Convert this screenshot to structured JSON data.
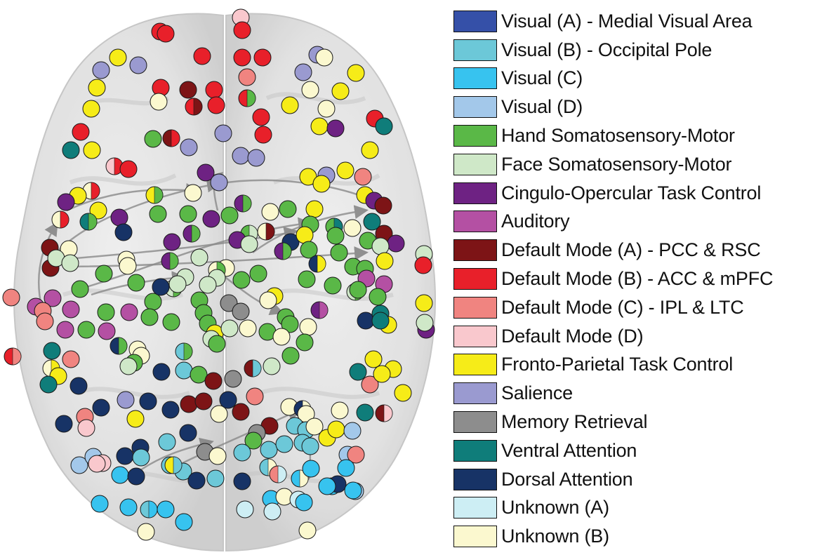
{
  "legend": [
    {
      "label": "Visual (A) - Medial Visual Area",
      "color": "#3550a8"
    },
    {
      "label": "Visual (B) - Occipital Pole",
      "color": "#6cc8d8"
    },
    {
      "label": "Visual (C)",
      "color": "#37c3ef"
    },
    {
      "label": "Visual (D)",
      "color": "#a3c8ea"
    },
    {
      "label": "Hand Somatosensory-Motor",
      "color": "#5ab847"
    },
    {
      "label": "Face Somatosensory-Motor",
      "color": "#cfe8c8"
    },
    {
      "label": "Cingulo-Opercular Task Control",
      "color": "#6e2283"
    },
    {
      "label": "Auditory",
      "color": "#b450a3"
    },
    {
      "label": "Default Mode (A) - PCC & RSC",
      "color": "#7d1416"
    },
    {
      "label": "Default Mode (B) - ACC & mPFC",
      "color": "#e8202a"
    },
    {
      "label": "Default Mode (C) - IPL & LTC",
      "color": "#f08480"
    },
    {
      "label": "Default Mode (D)",
      "color": "#f9c8cd"
    },
    {
      "label": "Fronto-Parietal Task Control",
      "color": "#f6ec18"
    },
    {
      "label": "Salience",
      "color": "#9a9ad0"
    },
    {
      "label": "Memory Retrieval",
      "color": "#8d8d8d"
    },
    {
      "label": "Ventral Attention",
      "color": "#0f7d7a"
    },
    {
      "label": "Dorsal Attention",
      "color": "#173366"
    },
    {
      "label": "Unknown (A)",
      "color": "#cdeef4"
    },
    {
      "label": "Unknown (B)",
      "color": "#fbf8cf"
    }
  ],
  "brain": {
    "shell_color": "#d6d6d6",
    "node_outline": "#1a1a1a"
  }
}
